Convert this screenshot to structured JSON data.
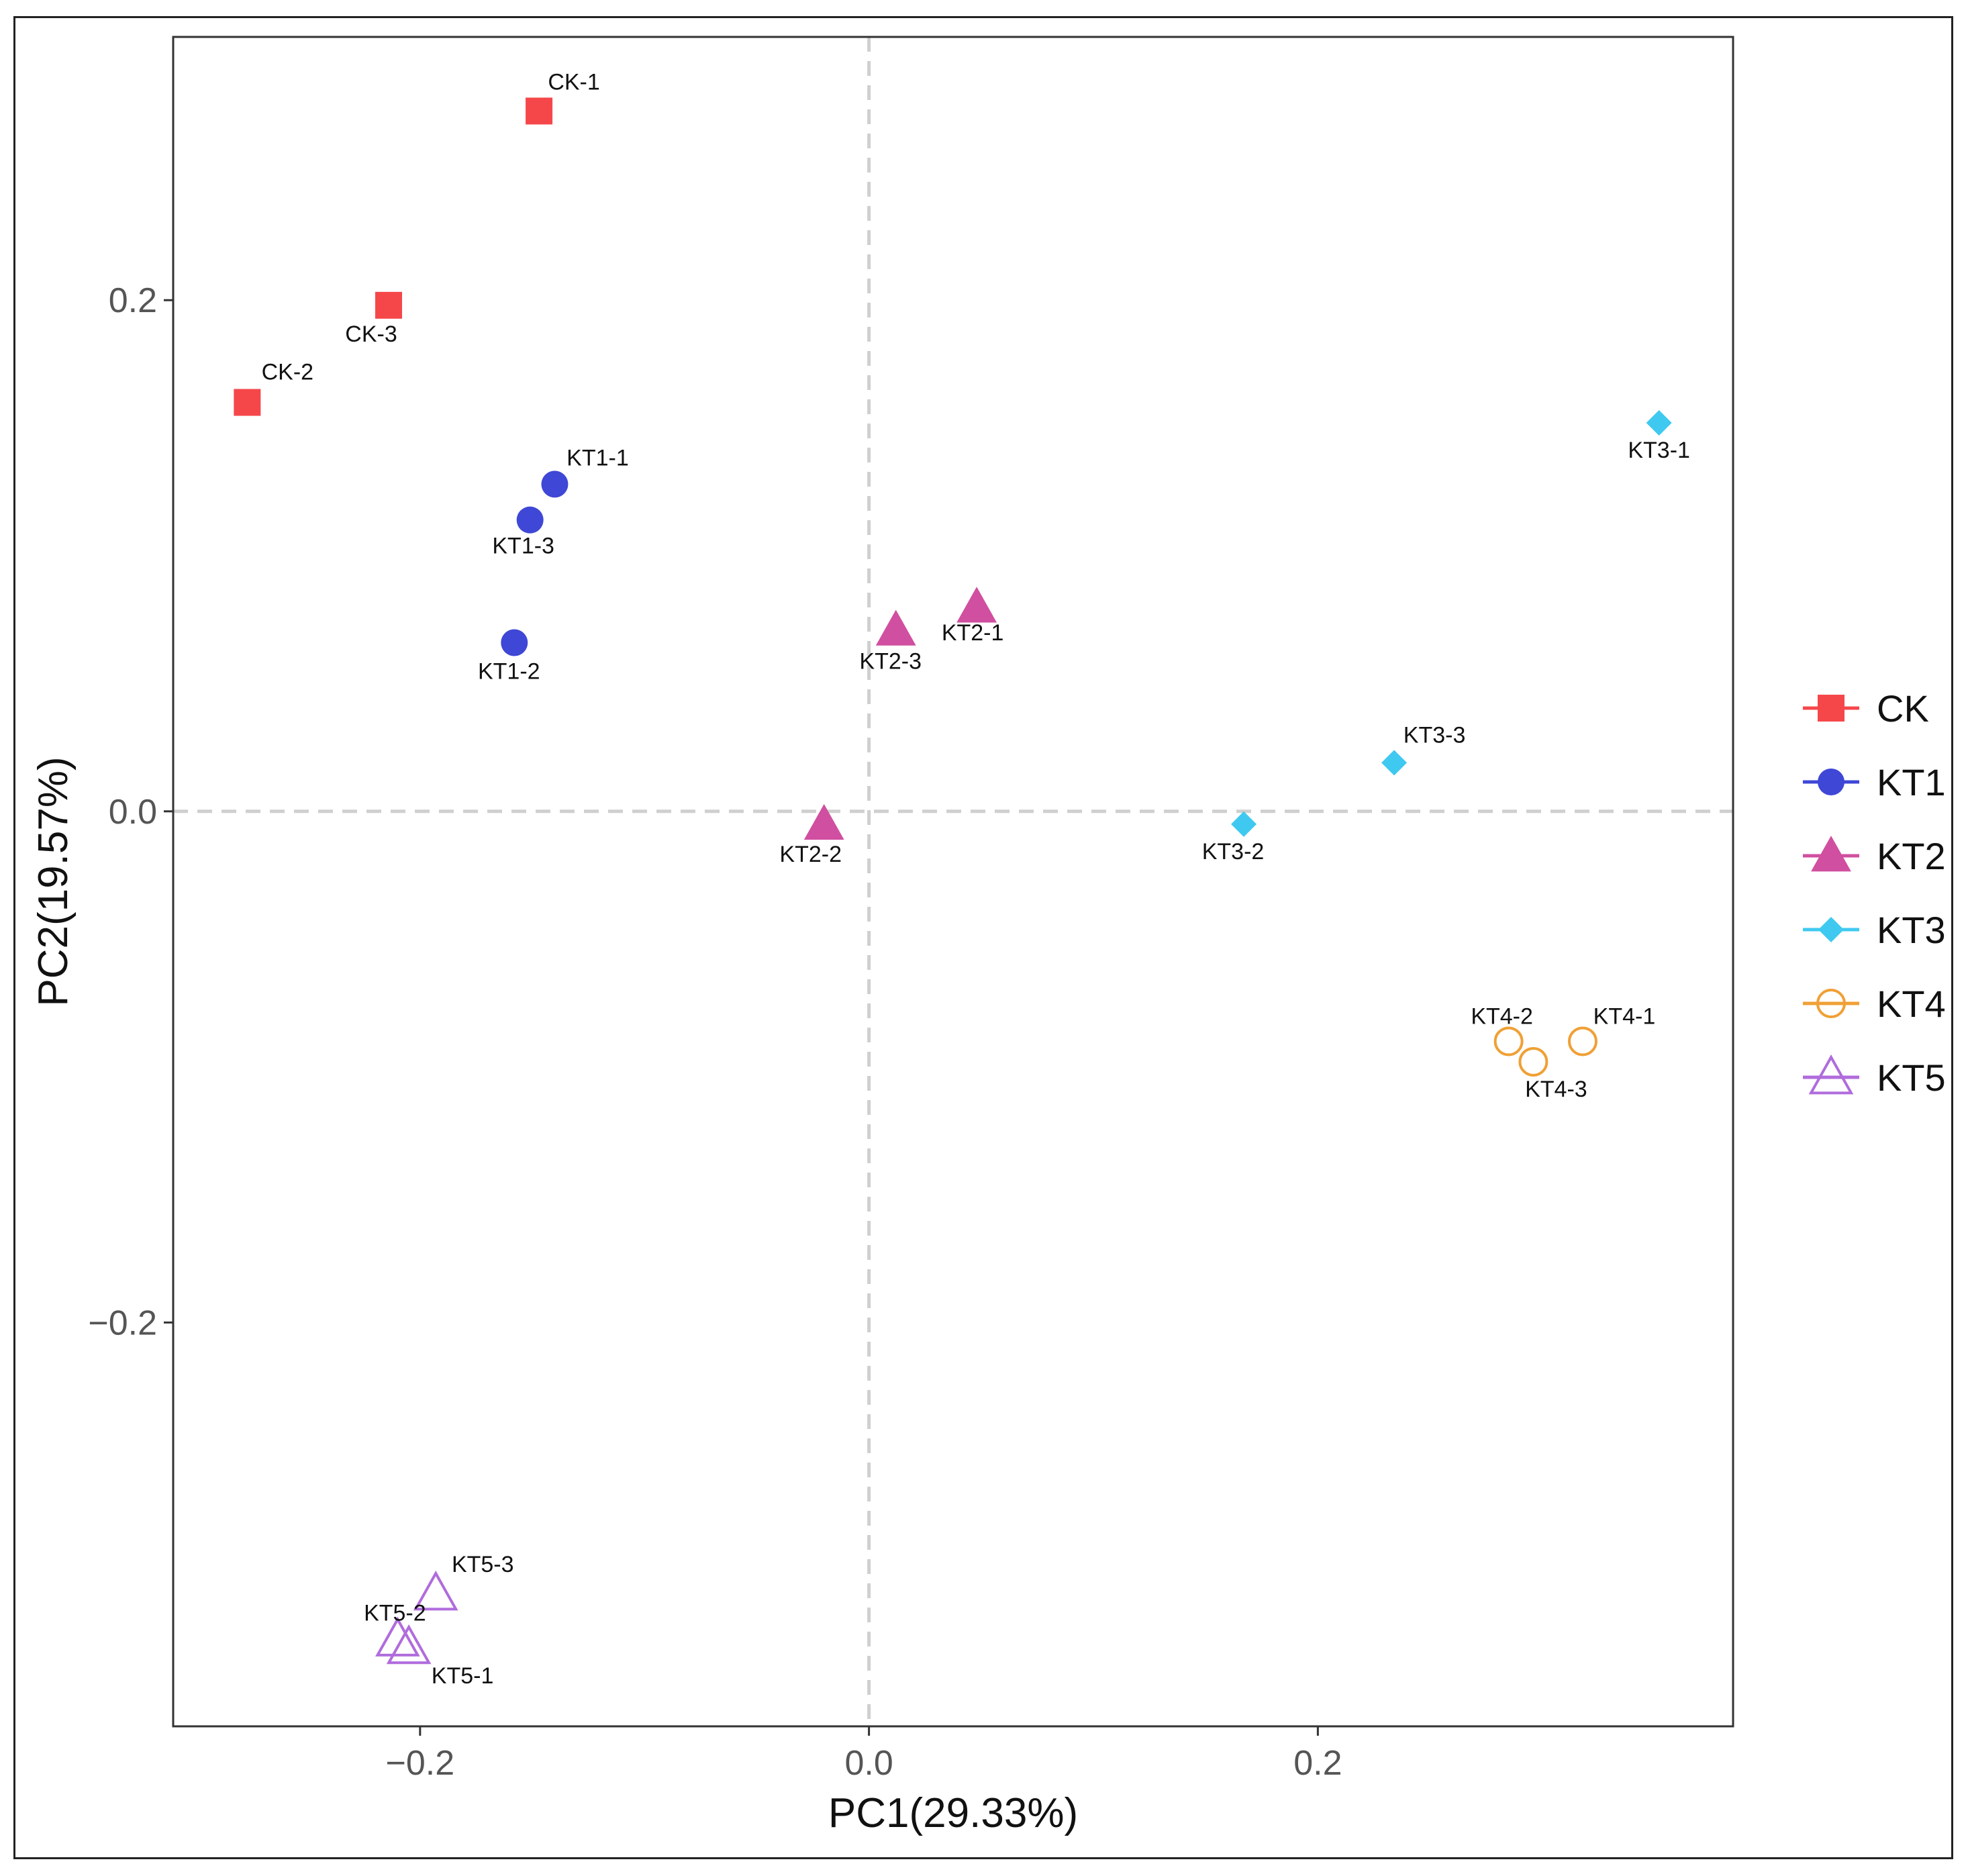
{
  "chart_data": {
    "type": "scatter",
    "title": "",
    "xlabel": "PC1(29.33%)",
    "ylabel": "PC2(19.57%)",
    "xlim": [
      -0.31,
      0.385
    ],
    "ylim": [
      -0.358,
      0.303
    ],
    "xticks": [
      {
        "value": -0.2,
        "label": "−0.2"
      },
      {
        "value": 0.0,
        "label": "0.0"
      },
      {
        "value": 0.2,
        "label": "0.2"
      }
    ],
    "yticks": [
      {
        "value": 0.2,
        "label": "0.2"
      },
      {
        "value": 0.0,
        "label": "0.0"
      },
      {
        "value": -0.2,
        "label": "−0.2"
      }
    ],
    "reference_lines": {
      "x": 0.0,
      "y": 0.0,
      "style": "dashed"
    },
    "grid": false,
    "legend_position": "right",
    "series": [
      {
        "name": "CK",
        "color": "#f5474a",
        "marker": "square",
        "filled": true,
        "points": [
          {
            "label": "CK-1",
            "x": -0.147,
            "y": 0.274
          },
          {
            "label": "CK-2",
            "x": -0.277,
            "y": 0.16
          },
          {
            "label": "CK-3",
            "x": -0.214,
            "y": 0.198
          }
        ]
      },
      {
        "name": "KT1",
        "color": "#3f47d6",
        "marker": "circle",
        "filled": true,
        "points": [
          {
            "label": "KT1-1",
            "x": -0.14,
            "y": 0.128
          },
          {
            "label": "KT1-2",
            "x": -0.158,
            "y": 0.066
          },
          {
            "label": "KT1-3",
            "x": -0.151,
            "y": 0.114
          }
        ]
      },
      {
        "name": "KT2",
        "color": "#d04fa0",
        "marker": "triangle",
        "filled": true,
        "points": [
          {
            "label": "KT2-1",
            "x": 0.048,
            "y": 0.08
          },
          {
            "label": "KT2-2",
            "x": -0.02,
            "y": -0.005
          },
          {
            "label": "KT2-3",
            "x": 0.012,
            "y": 0.071
          }
        ]
      },
      {
        "name": "KT3",
        "color": "#3fc9f0",
        "marker": "diamond",
        "filled": true,
        "points": [
          {
            "label": "KT3-1",
            "x": 0.352,
            "y": 0.152
          },
          {
            "label": "KT3-2",
            "x": 0.167,
            "y": -0.005
          },
          {
            "label": "KT3-3",
            "x": 0.234,
            "y": 0.019
          }
        ]
      },
      {
        "name": "KT4",
        "color": "#f0a035",
        "marker": "circle",
        "filled": false,
        "points": [
          {
            "label": "KT4-1",
            "x": 0.318,
            "y": -0.09
          },
          {
            "label": "KT4-2",
            "x": 0.285,
            "y": -0.09
          },
          {
            "label": "KT4-3",
            "x": 0.296,
            "y": -0.098
          }
        ]
      },
      {
        "name": "KT5",
        "color": "#b06cdc",
        "marker": "triangle",
        "filled": false,
        "points": [
          {
            "label": "KT5-1",
            "x": -0.205,
            "y": -0.327
          },
          {
            "label": "KT5-2",
            "x": -0.21,
            "y": -0.324
          },
          {
            "label": "KT5-3",
            "x": -0.193,
            "y": -0.306
          }
        ]
      }
    ]
  }
}
